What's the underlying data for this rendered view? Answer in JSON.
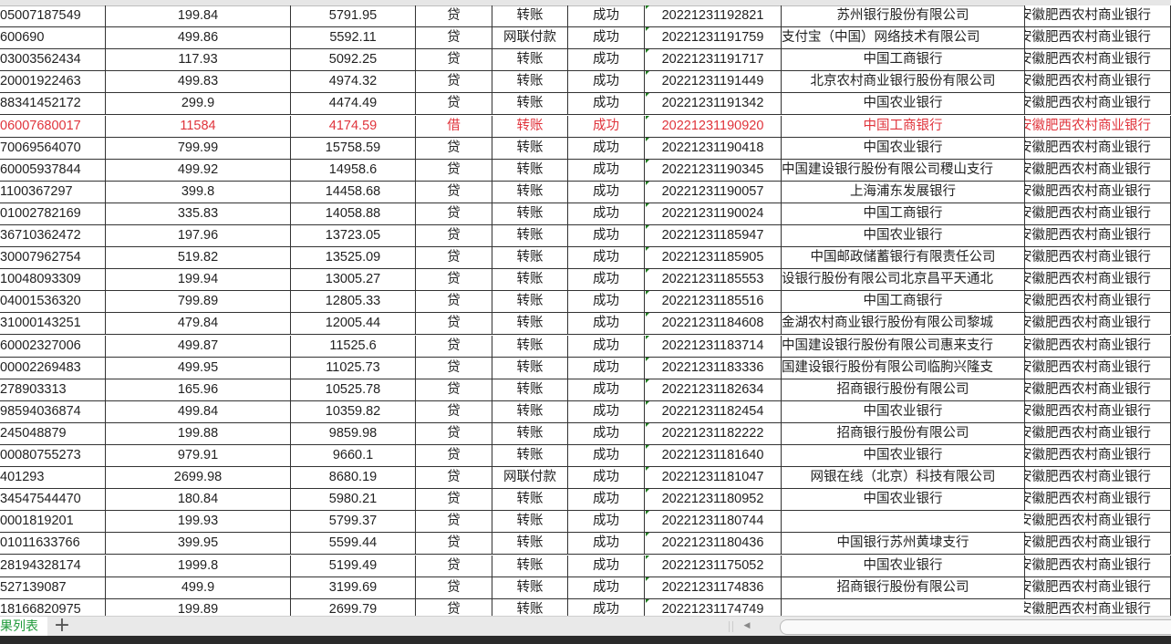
{
  "sheet": {
    "rows": [
      {
        "account": "05007187549",
        "amount": "199.84",
        "balance": "5791.95",
        "dc": "贷",
        "type": "转账",
        "status": "成功",
        "txn_id": "20221231192821",
        "counterparty_bank": "苏州银行股份有限公司",
        "own_bank": "安徽肥西农村商业银行"
      },
      {
        "account": "600690",
        "amount": "499.86",
        "balance": "5592.11",
        "dc": "贷",
        "type": "网联付款",
        "status": "成功",
        "txn_id": "20221231191759",
        "counterparty_bank": "支付宝（中国）网络技术有限公司",
        "own_bank": "安徽肥西农村商业银行"
      },
      {
        "account": "03003562434",
        "amount": "117.93",
        "balance": "5092.25",
        "dc": "贷",
        "type": "转账",
        "status": "成功",
        "txn_id": "20221231191717",
        "counterparty_bank": "中国工商银行",
        "own_bank": "安徽肥西农村商业银行"
      },
      {
        "account": "20001922463",
        "amount": "499.83",
        "balance": "4974.32",
        "dc": "贷",
        "type": "转账",
        "status": "成功",
        "txn_id": "20221231191449",
        "counterparty_bank": "北京农村商业银行股份有限公司",
        "own_bank": "安徽肥西农村商业银行"
      },
      {
        "account": "88341452172",
        "amount": "299.9",
        "balance": "4474.49",
        "dc": "贷",
        "type": "转账",
        "status": "成功",
        "txn_id": "20221231191342",
        "counterparty_bank": "中国农业银行",
        "own_bank": "安徽肥西农村商业银行"
      },
      {
        "account": "06007680017",
        "amount": "11584",
        "balance": "4174.59",
        "dc": "借",
        "type": "转账",
        "status": "成功",
        "txn_id": "20221231190920",
        "counterparty_bank": "中国工商银行",
        "own_bank": "安徽肥西农村商业银行",
        "highlight": true
      },
      {
        "account": "70069564070",
        "amount": "799.99",
        "balance": "15758.59",
        "dc": "贷",
        "type": "转账",
        "status": "成功",
        "txn_id": "20221231190418",
        "counterparty_bank": "中国农业银行",
        "own_bank": "安徽肥西农村商业银行"
      },
      {
        "account": "60005937844",
        "amount": "499.92",
        "balance": "14958.6",
        "dc": "贷",
        "type": "转账",
        "status": "成功",
        "txn_id": "20221231190345",
        "counterparty_bank": "中国建设银行股份有限公司稷山支行",
        "own_bank": "安徽肥西农村商业银行"
      },
      {
        "account": "1100367297",
        "amount": "399.8",
        "balance": "14458.68",
        "dc": "贷",
        "type": "转账",
        "status": "成功",
        "txn_id": "20221231190057",
        "counterparty_bank": "上海浦东发展银行",
        "own_bank": "安徽肥西农村商业银行"
      },
      {
        "account": "01002782169",
        "amount": "335.83",
        "balance": "14058.88",
        "dc": "贷",
        "type": "转账",
        "status": "成功",
        "txn_id": "20221231190024",
        "counterparty_bank": "中国工商银行",
        "own_bank": "安徽肥西农村商业银行"
      },
      {
        "account": "36710362472",
        "amount": "197.96",
        "balance": "13723.05",
        "dc": "贷",
        "type": "转账",
        "status": "成功",
        "txn_id": "20221231185947",
        "counterparty_bank": "中国农业银行",
        "own_bank": "安徽肥西农村商业银行"
      },
      {
        "account": "30007962754",
        "amount": "519.82",
        "balance": "13525.09",
        "dc": "贷",
        "type": "转账",
        "status": "成功",
        "txn_id": "20221231185905",
        "counterparty_bank": "中国邮政储蓄银行有限责任公司",
        "own_bank": "安徽肥西农村商业银行"
      },
      {
        "account": "10048093309",
        "amount": "199.94",
        "balance": "13005.27",
        "dc": "贷",
        "type": "转账",
        "status": "成功",
        "txn_id": "20221231185553",
        "counterparty_bank": "设银行股份有限公司北京昌平天通北",
        "own_bank": "安徽肥西农村商业银行"
      },
      {
        "account": "04001536320",
        "amount": "799.89",
        "balance": "12805.33",
        "dc": "贷",
        "type": "转账",
        "status": "成功",
        "txn_id": "20221231185516",
        "counterparty_bank": "中国工商银行",
        "own_bank": "安徽肥西农村商业银行"
      },
      {
        "account": "31000143251",
        "amount": "479.84",
        "balance": "12005.44",
        "dc": "贷",
        "type": "转账",
        "status": "成功",
        "txn_id": "20221231184608",
        "counterparty_bank": "金湖农村商业银行股份有限公司黎城",
        "own_bank": "安徽肥西农村商业银行"
      },
      {
        "account": "60002327006",
        "amount": "499.87",
        "balance": "11525.6",
        "dc": "贷",
        "type": "转账",
        "status": "成功",
        "txn_id": "20221231183714",
        "counterparty_bank": "中国建设银行股份有限公司惠来支行",
        "own_bank": "安徽肥西农村商业银行"
      },
      {
        "account": "00002269483",
        "amount": "499.95",
        "balance": "11025.73",
        "dc": "贷",
        "type": "转账",
        "status": "成功",
        "txn_id": "20221231183336",
        "counterparty_bank": "国建设银行股份有限公司临朐兴隆支",
        "own_bank": "安徽肥西农村商业银行"
      },
      {
        "account": "278903313",
        "amount": "165.96",
        "balance": "10525.78",
        "dc": "贷",
        "type": "转账",
        "status": "成功",
        "txn_id": "20221231182634",
        "counterparty_bank": "招商银行股份有限公司",
        "own_bank": "安徽肥西农村商业银行"
      },
      {
        "account": "98594036874",
        "amount": "499.84",
        "balance": "10359.82",
        "dc": "贷",
        "type": "转账",
        "status": "成功",
        "txn_id": "20221231182454",
        "counterparty_bank": "中国农业银行",
        "own_bank": "安徽肥西农村商业银行"
      },
      {
        "account": "245048879",
        "amount": "199.88",
        "balance": "9859.98",
        "dc": "贷",
        "type": "转账",
        "status": "成功",
        "txn_id": "20221231182222",
        "counterparty_bank": "招商银行股份有限公司",
        "own_bank": "安徽肥西农村商业银行"
      },
      {
        "account": "00080755273",
        "amount": "979.91",
        "balance": "9660.1",
        "dc": "贷",
        "type": "转账",
        "status": "成功",
        "txn_id": "20221231181640",
        "counterparty_bank": "中国农业银行",
        "own_bank": "安徽肥西农村商业银行"
      },
      {
        "account": "401293",
        "amount": "2699.98",
        "balance": "8680.19",
        "dc": "贷",
        "type": "网联付款",
        "status": "成功",
        "txn_id": "20221231181047",
        "counterparty_bank": "网银在线（北京）科技有限公司",
        "own_bank": "安徽肥西农村商业银行"
      },
      {
        "account": "34547544470",
        "amount": "180.84",
        "balance": "5980.21",
        "dc": "贷",
        "type": "转账",
        "status": "成功",
        "txn_id": "20221231180952",
        "counterparty_bank": "中国农业银行",
        "own_bank": "安徽肥西农村商业银行"
      },
      {
        "account": "0001819201",
        "amount": "199.93",
        "balance": "5799.37",
        "dc": "贷",
        "type": "转账",
        "status": "成功",
        "txn_id": "20221231180744",
        "counterparty_bank": "",
        "own_bank": "安徽肥西农村商业银行"
      },
      {
        "account": "01011633766",
        "amount": "399.95",
        "balance": "5599.44",
        "dc": "贷",
        "type": "转账",
        "status": "成功",
        "txn_id": "20221231180436",
        "counterparty_bank": "中国银行苏州黄埭支行",
        "own_bank": "安徽肥西农村商业银行"
      },
      {
        "account": "28194328174",
        "amount": "1999.8",
        "balance": "5199.49",
        "dc": "贷",
        "type": "转账",
        "status": "成功",
        "txn_id": "20221231175052",
        "counterparty_bank": "中国农业银行",
        "own_bank": "安徽肥西农村商业银行"
      },
      {
        "account": "527139087",
        "amount": "499.9",
        "balance": "3199.69",
        "dc": "贷",
        "type": "转账",
        "status": "成功",
        "txn_id": "20221231174836",
        "counterparty_bank": "招商银行股份有限公司",
        "own_bank": "安徽肥西农村商业银行"
      },
      {
        "account": "18166820975",
        "amount": "199.89",
        "balance": "2699.79",
        "dc": "贷",
        "type": "转账",
        "status": "成功",
        "txn_id": "20221231174749",
        "counterparty_bank": "",
        "own_bank": "安徽肥西农村商业银行"
      }
    ]
  },
  "tabbar": {
    "sheet_tab_label": "果列表",
    "add_sheet_icon": "plus-icon",
    "active_tab_color": "#1f9a3a"
  },
  "colors": {
    "highlight_text": "#e0343c",
    "text": "#222222"
  }
}
